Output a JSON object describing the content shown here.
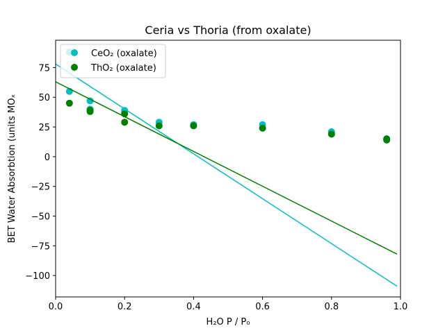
{
  "chart_data": {
    "type": "scatter",
    "title": "Ceria vs Thoria (from oxalate)",
    "xlabel": "H₂O P / P₀",
    "ylabel": "BET Water Absorbtion (units MOₓ",
    "xlim": [
      0.0,
      1.0
    ],
    "ylim": [
      -118,
      98
    ],
    "xticks": [
      0.0,
      0.2,
      0.4,
      0.6,
      0.8,
      1.0
    ],
    "xtick_labels": [
      "0.0",
      "0.2",
      "0.4",
      "0.6",
      "0.8",
      "1.0"
    ],
    "yticks": [
      75,
      50,
      25,
      0,
      -25,
      -50,
      -75,
      -100
    ],
    "ytick_labels": [
      "75",
      "50",
      "25",
      "0",
      "−25",
      "−50",
      "−75",
      "−100"
    ],
    "grid": false,
    "legend_position": "top-left",
    "series": [
      {
        "name": "CeO₂ (oxalate)",
        "color": "#00bfbf",
        "x": [
          0.04,
          0.04,
          0.1,
          0.1,
          0.2,
          0.2,
          0.3,
          0.4,
          0.6,
          0.8,
          0.96
        ],
        "y": [
          88,
          55,
          47,
          40,
          39,
          37,
          29,
          27,
          27,
          21,
          15
        ],
        "fit_line": {
          "x": [
            0.0,
            0.99
          ],
          "y": [
            78,
            -109
          ]
        }
      },
      {
        "name": "ThO₂ (oxalate)",
        "color": "#008000",
        "x": [
          0.04,
          0.1,
          0.1,
          0.2,
          0.2,
          0.3,
          0.4,
          0.6,
          0.8,
          0.96,
          0.96
        ],
        "y": [
          45,
          39,
          38,
          36,
          29,
          26,
          26,
          24,
          19,
          15,
          14
        ],
        "fit_line": {
          "x": [
            0.0,
            0.99
          ],
          "y": [
            63,
            -82
          ]
        }
      }
    ]
  }
}
